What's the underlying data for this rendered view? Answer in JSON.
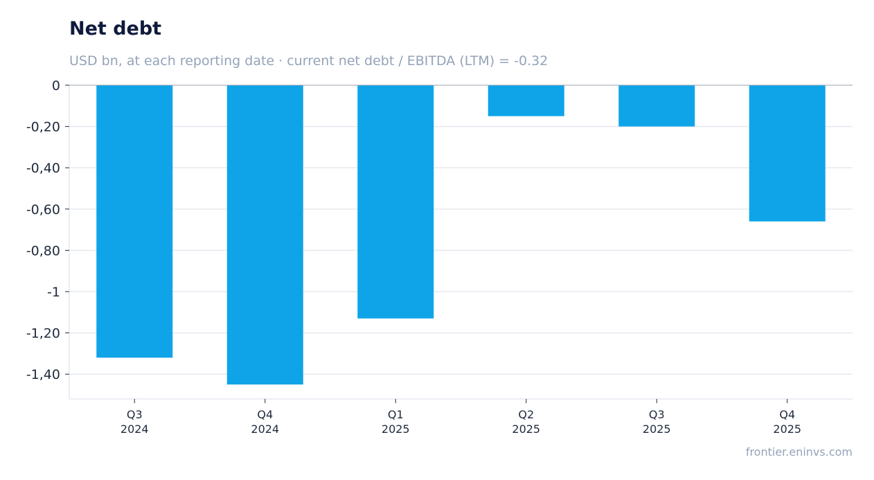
{
  "header": {
    "title": "Net debt",
    "subtitle": "USD bn, at each reporting date · current net debt / EBITDA (LTM) = -0.32"
  },
  "footer": {
    "source": "frontier.eninvs.com"
  },
  "colors": {
    "bar": "#0fa4e8",
    "grid": "#e5e9ef",
    "zero_line": "#9aa3ad",
    "axis_text": "#1e293b",
    "muted_text": "#94a3b8",
    "title": "#0f1a3d"
  },
  "chart_data": {
    "type": "bar",
    "title": "Net debt",
    "subtitle": "USD bn, at each reporting date · current net debt / EBITDA (LTM) = -0.32",
    "xlabel": "",
    "ylabel": "",
    "categories": [
      [
        "Q3",
        "2024"
      ],
      [
        "Q4",
        "2024"
      ],
      [
        "Q1",
        "2025"
      ],
      [
        "Q2",
        "2025"
      ],
      [
        "Q3",
        "2025"
      ],
      [
        "Q4",
        "2025"
      ]
    ],
    "values": [
      -1.32,
      -1.45,
      -1.13,
      -0.15,
      -0.2,
      -0.66
    ],
    "ylim": [
      -1.52,
      0
    ],
    "yticks": [
      0,
      -0.2,
      -0.4,
      -0.6,
      -0.8,
      -1,
      -1.2,
      -1.4
    ],
    "ytick_labels": [
      "0",
      "-0,20",
      "-0,40",
      "-0,60",
      "-0,80",
      "-1",
      "-1,20",
      "-1,40"
    ],
    "grid": true,
    "legend": "none"
  }
}
